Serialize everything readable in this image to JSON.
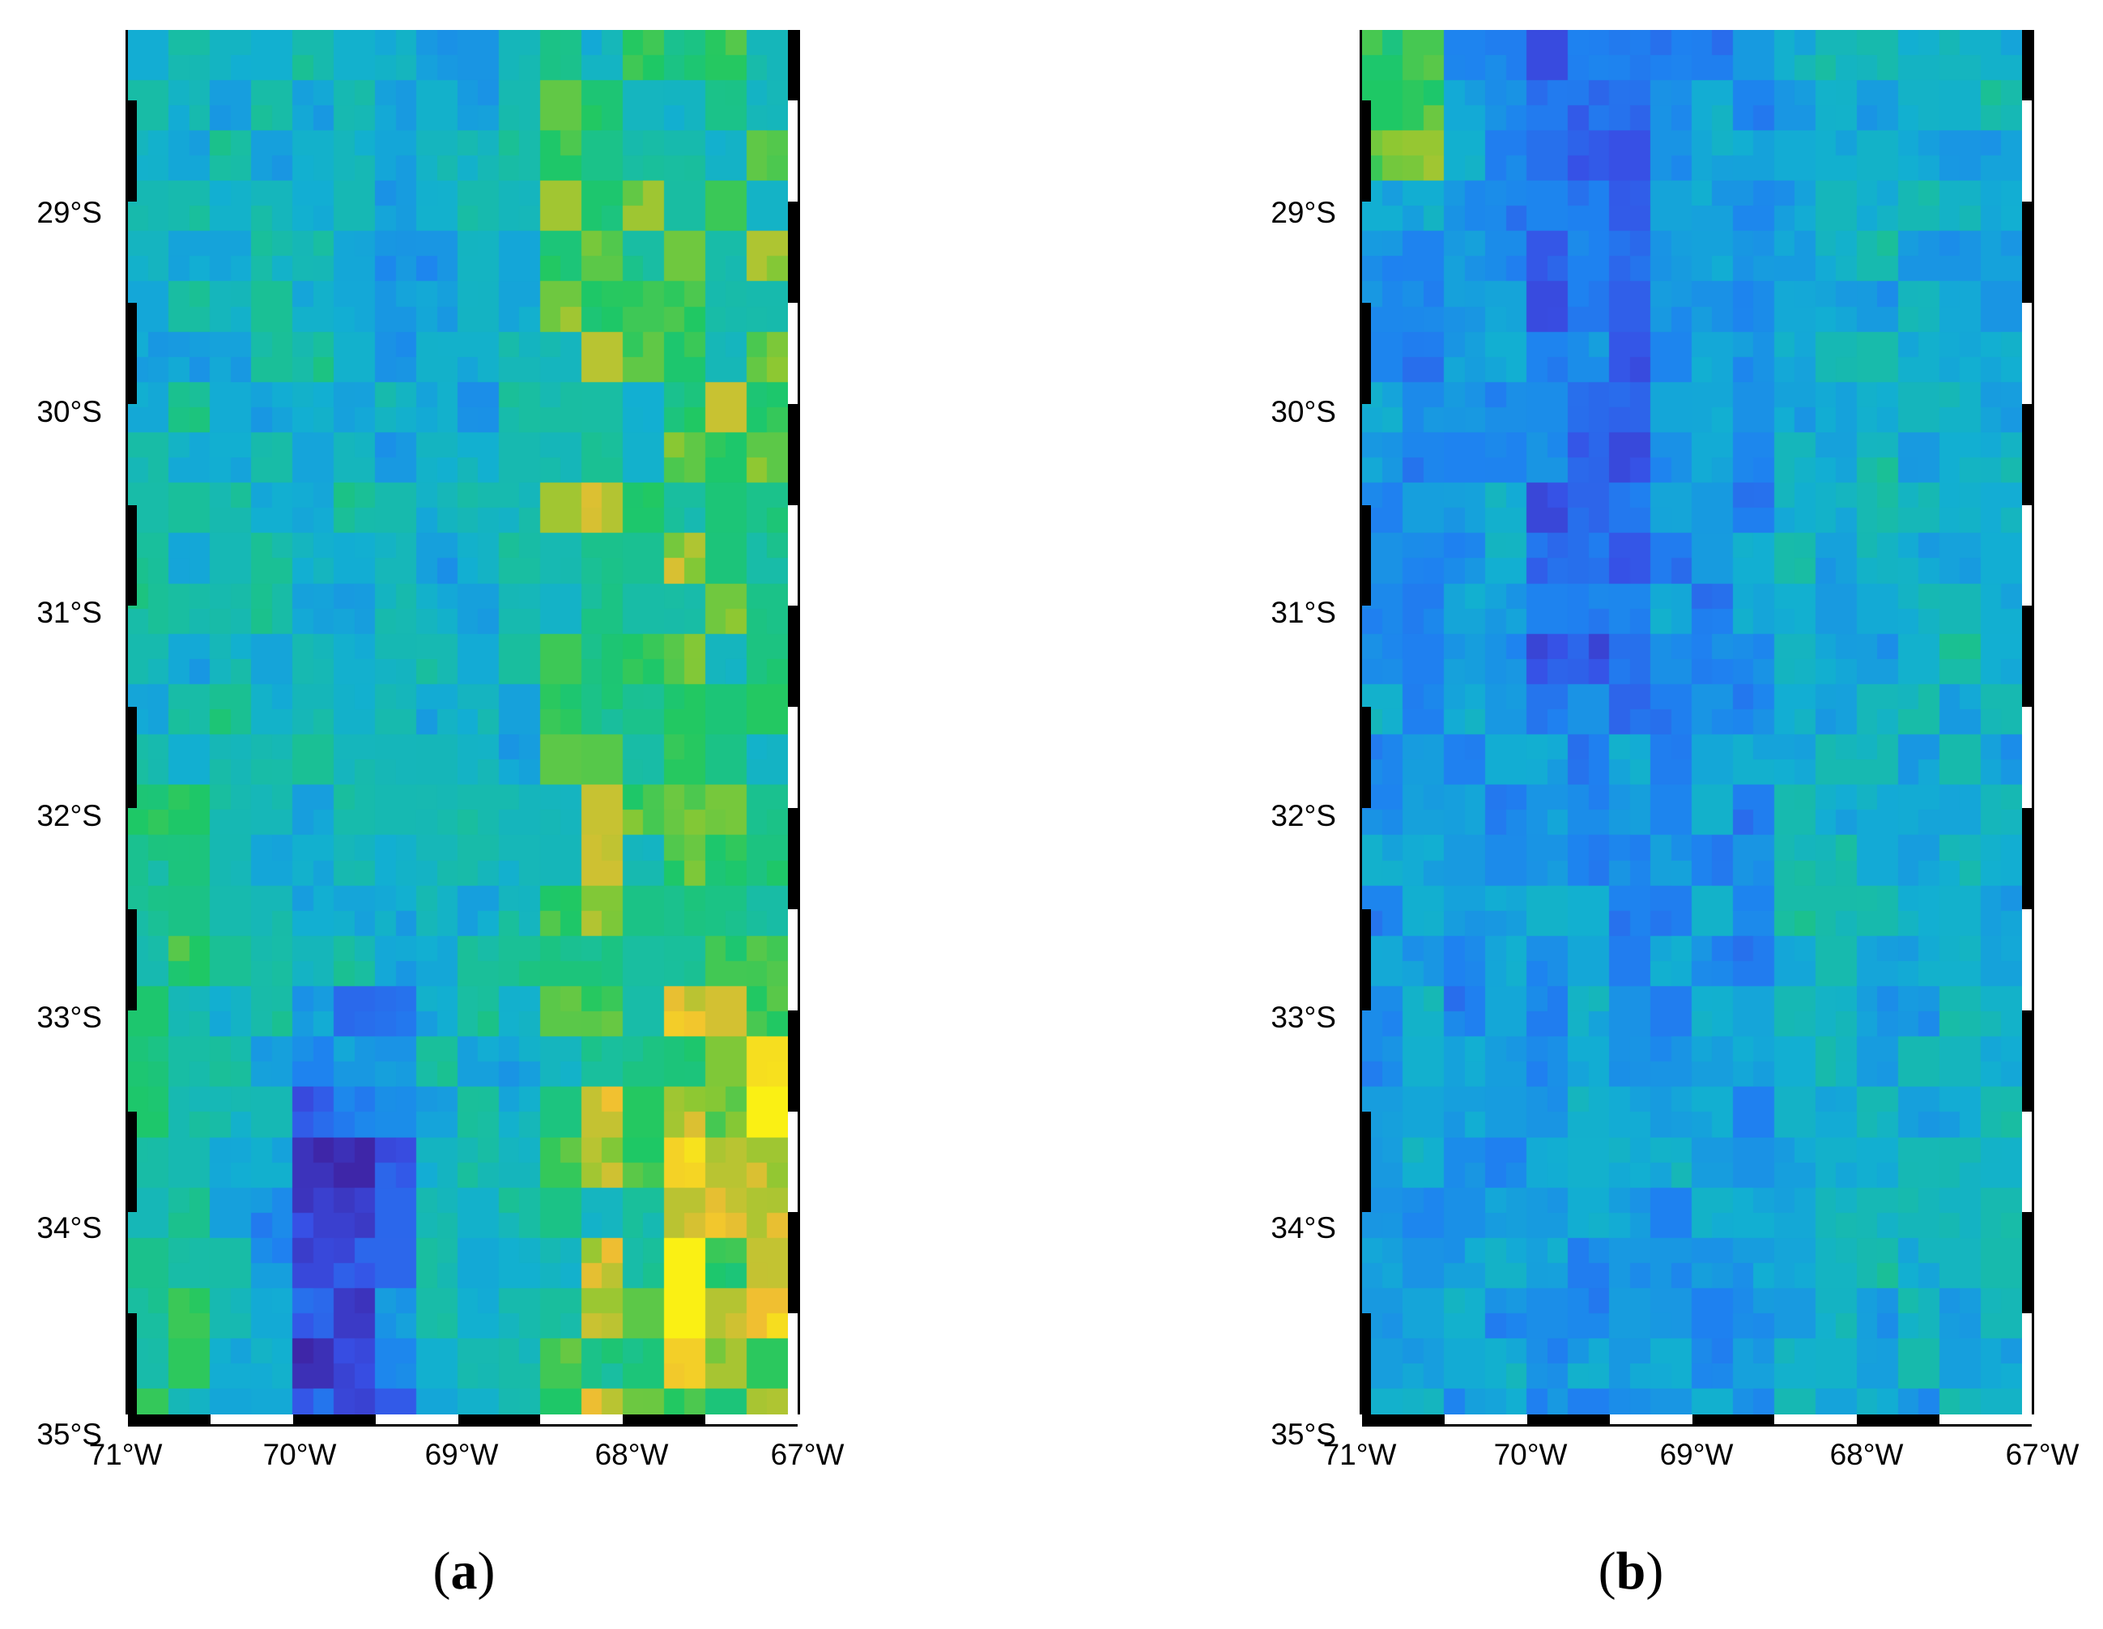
{
  "figure": {
    "lat_labels": [
      "29°S",
      "30°S",
      "31°S",
      "32°S",
      "33°S",
      "34°S",
      "35°S"
    ],
    "lon_labels": [
      "71°W",
      "70°W",
      "69°W",
      "68°W",
      "67°W"
    ],
    "extent": {
      "lon_min": -71,
      "lon_max": -67,
      "lat_min": -35,
      "lat_max": -28.15
    }
  },
  "panels": [
    {
      "id": "a",
      "caption_letter": "a",
      "caption_open": "(",
      "caption_close": ")",
      "colormap": "parula",
      "pattern": "high values (yellow) along eastern Andes corridor and southeast; low values (blue/purple) in southwest valley",
      "seed": 17
    },
    {
      "id": "b",
      "caption_letter": "b",
      "caption_open": "(",
      "caption_close": ")",
      "colormap": "parula",
      "pattern": "predominantly blue/cyan field with darker purple patches in the west-central band",
      "seed": 91
    }
  ]
}
